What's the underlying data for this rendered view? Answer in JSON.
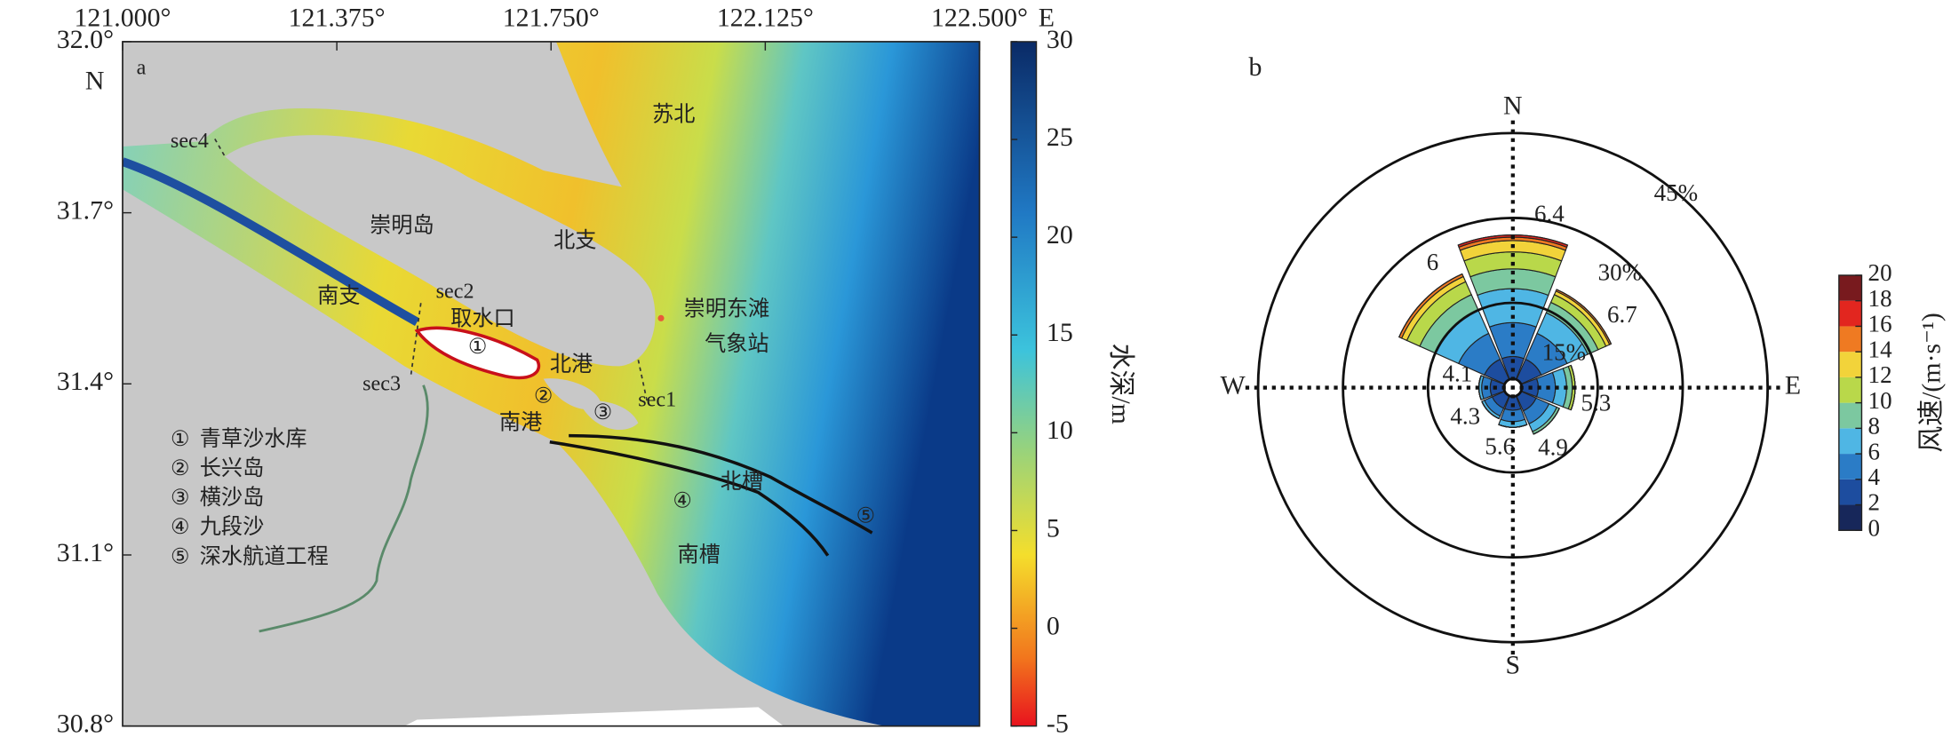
{
  "map": {
    "panel": "a",
    "lonlim": [
      121.0,
      122.5
    ],
    "latlim": [
      30.8,
      32.0
    ],
    "lon_ticks": [
      {
        "value": 121.0,
        "label": "121.000°"
      },
      {
        "value": 121.375,
        "label": "121.375°"
      },
      {
        "value": 121.75,
        "label": "121.750°"
      },
      {
        "value": 122.125,
        "label": "122.125°"
      },
      {
        "value": 122.5,
        "label": "122.500°"
      }
    ],
    "lon_unit": "E",
    "lat_ticks": [
      {
        "value": 32.0,
        "label": "32.0°"
      },
      {
        "value": 31.7,
        "label": "31.7°"
      },
      {
        "value": 31.4,
        "label": "31.4°"
      },
      {
        "value": 31.1,
        "label": "31.1°"
      },
      {
        "value": 30.8,
        "label": "30.8°"
      }
    ],
    "lat_unit": "N",
    "places": [
      "苏北",
      "崇明岛",
      "北支",
      "南支",
      "sec2",
      "取水口",
      "①",
      "崇明东滩",
      "气象站",
      "北港",
      "sec3",
      "②",
      "③",
      "sec1",
      "南港",
      "北槽",
      "④",
      "⑤",
      "南槽",
      "sec4"
    ],
    "legend": [
      {
        "symbol": "①",
        "name": "青草沙水库"
      },
      {
        "symbol": "②",
        "name": "长兴岛"
      },
      {
        "symbol": "③",
        "name": "横沙岛"
      },
      {
        "symbol": "④",
        "name": "九段沙"
      },
      {
        "symbol": "⑤",
        "name": "深水航道工程"
      }
    ],
    "colorbar": {
      "label": "水深/m",
      "lim": [
        -5,
        30
      ],
      "ticks": [
        -5,
        0,
        5,
        10,
        15,
        20,
        25,
        30
      ]
    }
  },
  "windrose": {
    "panel": "b",
    "directions": [
      "N",
      "E",
      "S",
      "W"
    ],
    "rings": [
      {
        "value": 15,
        "label": "15%"
      },
      {
        "value": 30,
        "label": "30%"
      },
      {
        "value": 45,
        "label": "45%"
      }
    ],
    "sectors": [
      {
        "mean_speed": 6.4,
        "segments": [
          1.5,
          4,
          6,
          6,
          3.5,
          3,
          2,
          0.6,
          0.4,
          0
        ]
      },
      {
        "mean_speed": 6.7,
        "segments": [
          1.5,
          4,
          5,
          4,
          2,
          1.5,
          0.7,
          0.3,
          0,
          0
        ]
      },
      {
        "mean_speed": 5.3,
        "segments": [
          1.5,
          3,
          3,
          2,
          1,
          0.5,
          0,
          0,
          0,
          0
        ]
      },
      {
        "mean_speed": 4.9,
        "segments": [
          1.5,
          3,
          2.5,
          1.5,
          0.5,
          0,
          0,
          0,
          0,
          0
        ]
      },
      {
        "mean_speed": 5.6,
        "segments": [
          1.5,
          2.5,
          2,
          1,
          0,
          0,
          0,
          0,
          0,
          0
        ]
      },
      {
        "mean_speed": 4.3,
        "segments": [
          1.5,
          2.5,
          1.5,
          0.5,
          0,
          0,
          0,
          0,
          0,
          0
        ]
      },
      {
        "mean_speed": 4.1,
        "segments": [
          1.5,
          2.5,
          1.5,
          0.5,
          0,
          0,
          0,
          0,
          0,
          0
        ]
      },
      {
        "mean_speed": 6.0,
        "segments": [
          1.5,
          4,
          5,
          4.5,
          3,
          2.5,
          1,
          0.5,
          0,
          0
        ]
      }
    ],
    "colorbar": {
      "label": "风速/(m·s⁻¹)",
      "ticks": [
        0,
        2,
        4,
        6,
        8,
        10,
        12,
        14,
        16,
        18,
        20
      ],
      "colors": [
        "#17275a",
        "#1d4d9f",
        "#2b7cc6",
        "#4fb6e4",
        "#7cc8a0",
        "#b9d84a",
        "#f2d33a",
        "#ef7a22",
        "#e2261f",
        "#781a1e"
      ]
    }
  }
}
